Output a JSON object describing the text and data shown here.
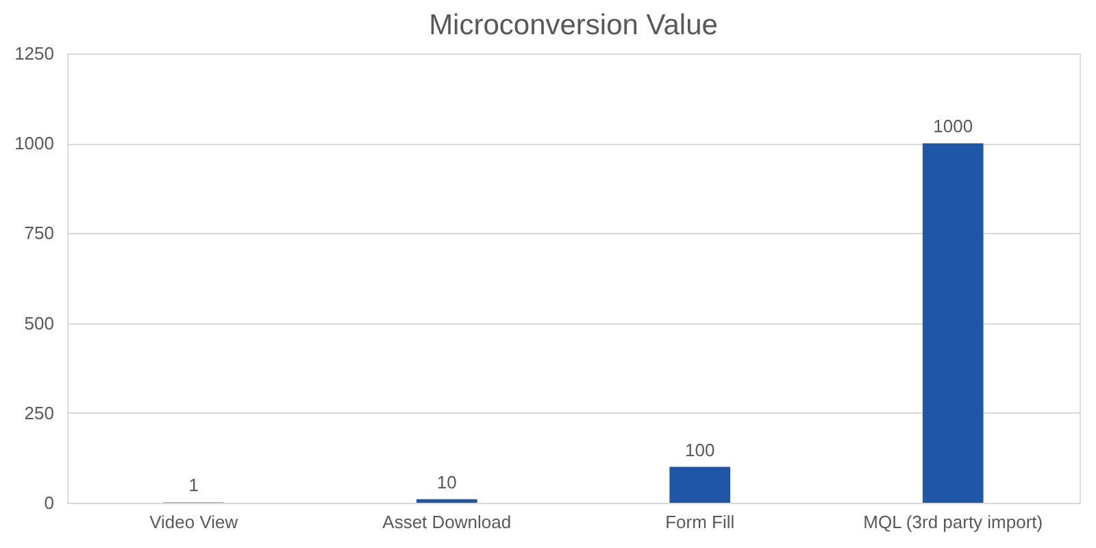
{
  "chart_data": {
    "type": "bar",
    "title": "Microconversion Value",
    "categories": [
      "Video View",
      "Asset Download",
      "Form Fill",
      "MQL (3rd party import)"
    ],
    "values": [
      1,
      10,
      100,
      1000
    ],
    "color": "#1f56a6",
    "ylim": [
      0,
      1250
    ],
    "yticks": [
      0,
      250,
      500,
      750,
      1000,
      1250
    ],
    "grid": "y",
    "data_labels": true
  }
}
